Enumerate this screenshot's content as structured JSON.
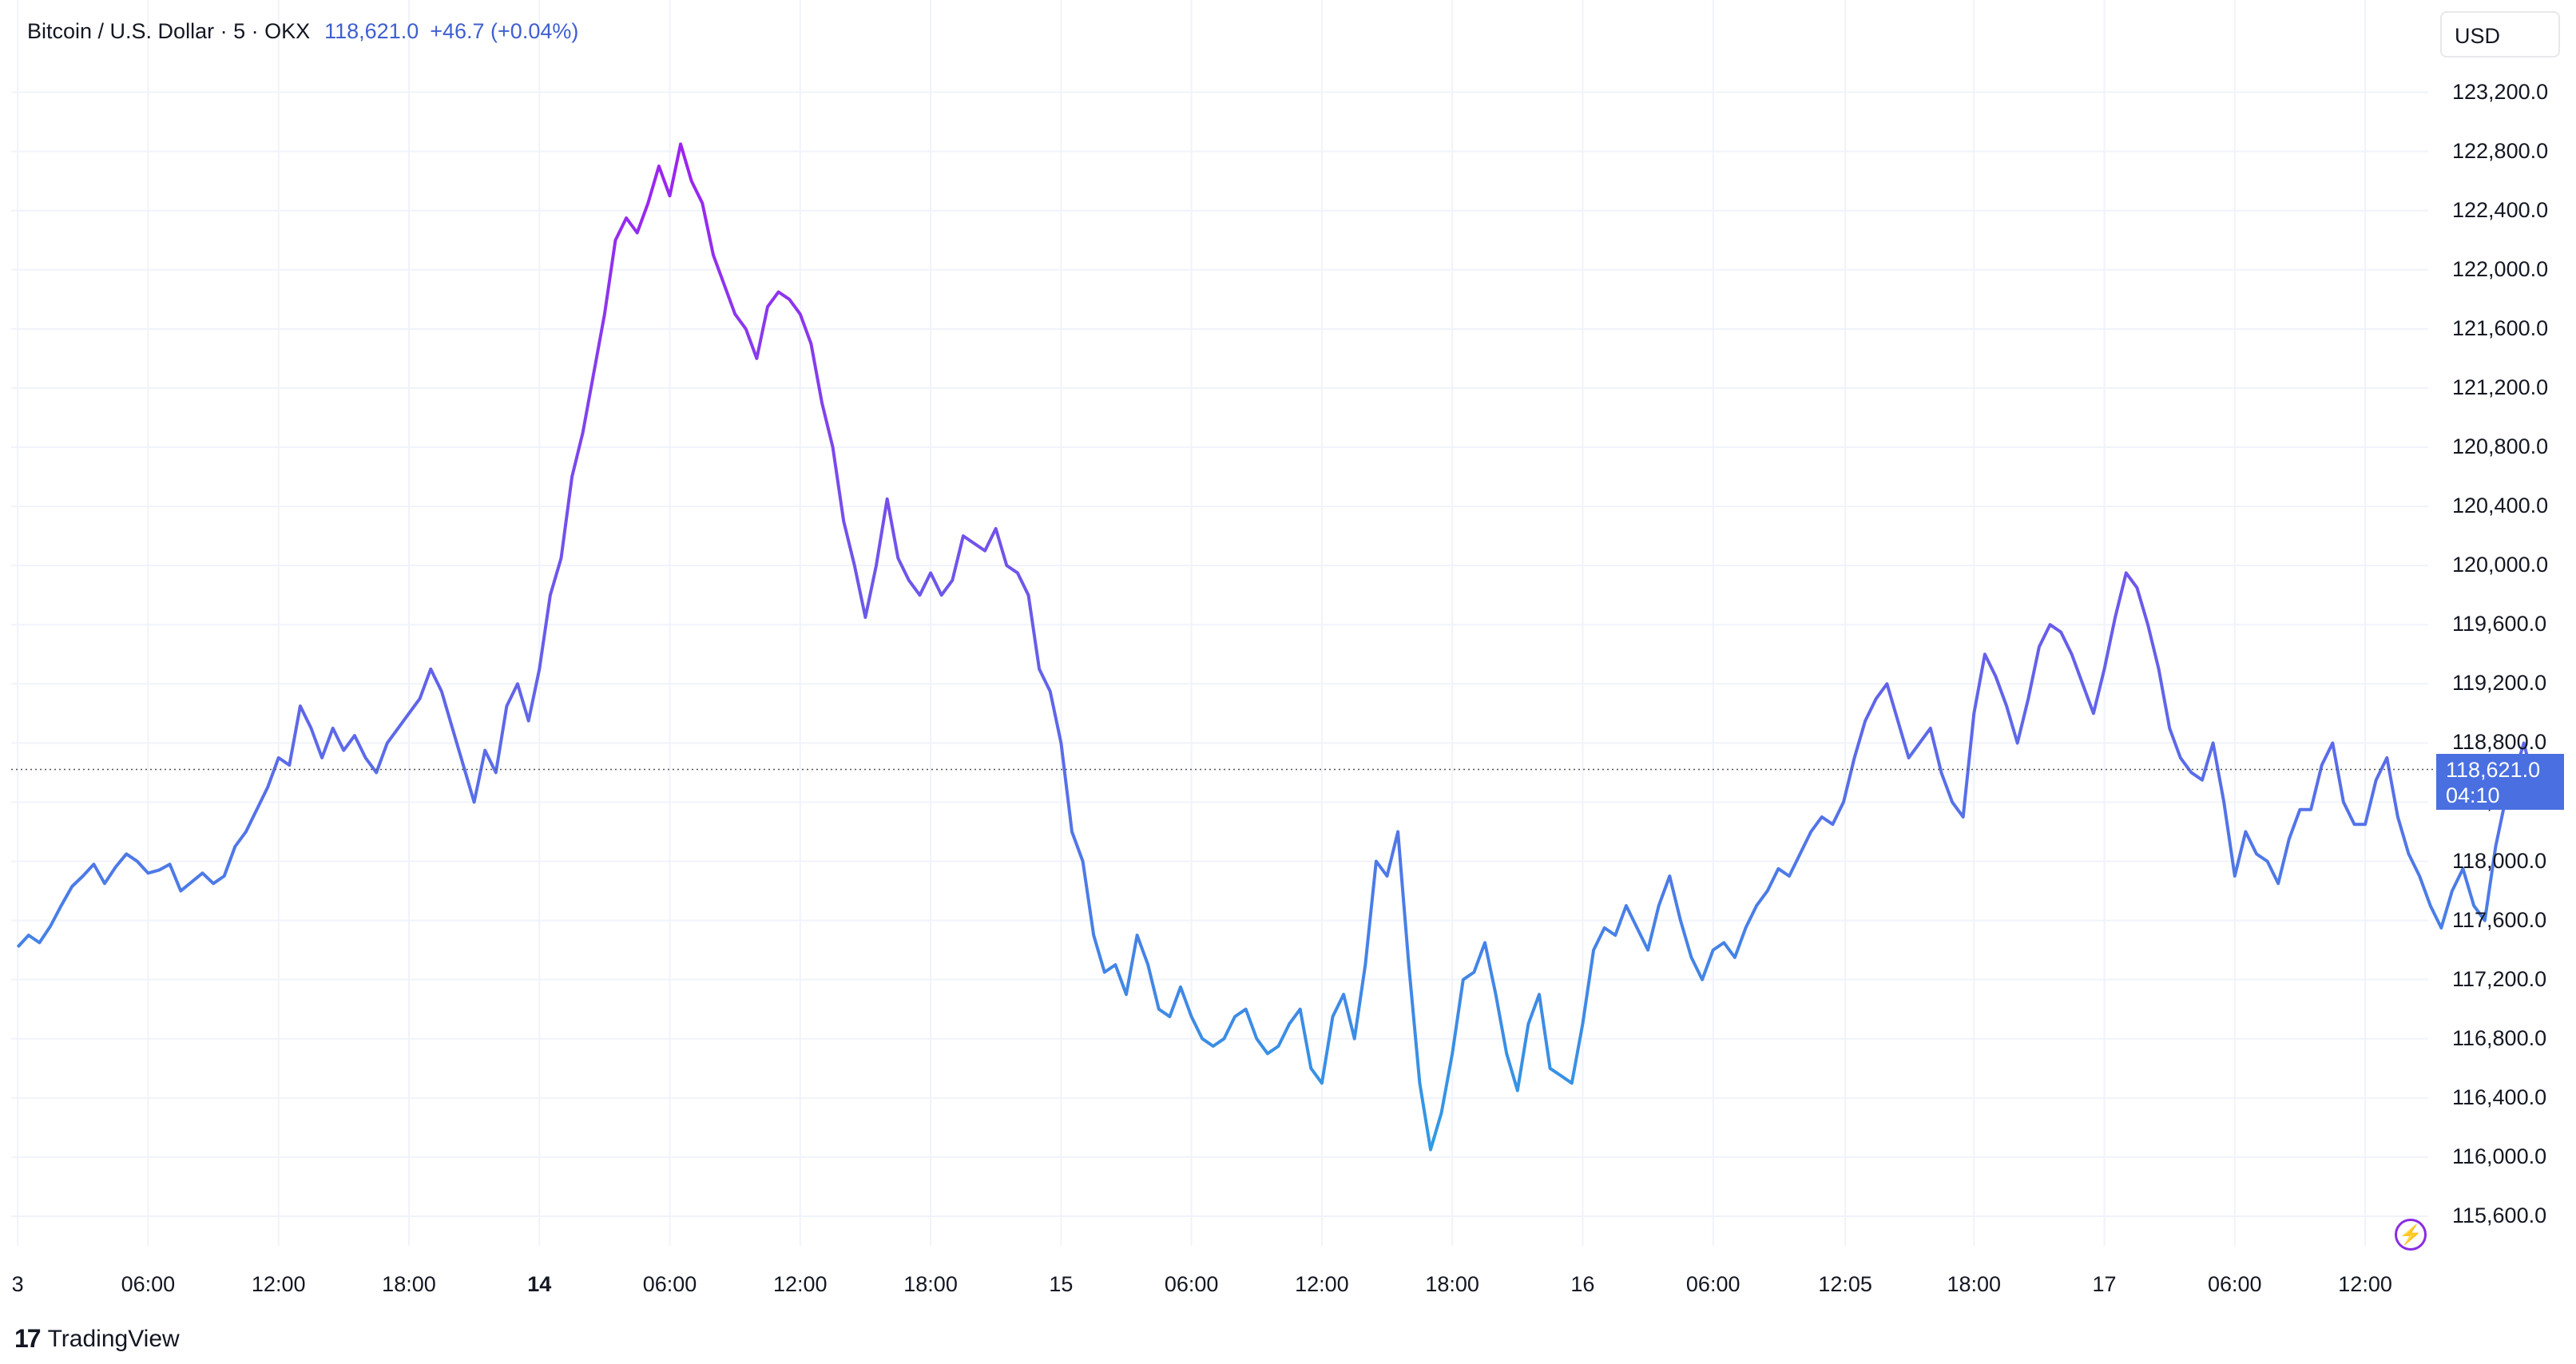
{
  "header": {
    "symbol": "Bitcoin / U.S. Dollar · 5 · OKX",
    "price": "118,621.0",
    "change": "+46.7 (+0.04%)"
  },
  "currency_label": "USD",
  "last_price_label": {
    "price": "118,621.0",
    "countdown": "04:10"
  },
  "brand": {
    "logo": "17",
    "name": "TradingView"
  },
  "colors": {
    "line_start": "#2f9be3",
    "line_end": "#a020f0",
    "accent": "#4a6fe0",
    "grid": "#f0f3fa"
  },
  "chart_data": {
    "type": "line",
    "title": "Bitcoin / U.S. Dollar · 5 · OKX",
    "ylim": [
      115400,
      123500
    ],
    "yticks": [
      115600,
      116000,
      116400,
      116800,
      117200,
      117600,
      118000,
      118400,
      118800,
      119200,
      119600,
      120000,
      120400,
      120800,
      121200,
      121600,
      122000,
      122400,
      122800,
      123200
    ],
    "ytick_labels": [
      "115,600.0",
      "116,000.0",
      "116,400.0",
      "116,800.0",
      "117,200.0",
      "117,600.0",
      "118,000.0",
      "118,400.0",
      "118,800.0",
      "119,200.0",
      "119,600.0",
      "120,000.0",
      "120,400.0",
      "120,800.0",
      "121,200.0",
      "121,600.0",
      "122,000.0",
      "122,400.0",
      "122,800.0",
      "123,200.0"
    ],
    "xticks": [
      {
        "label": "3",
        "t": 0.0
      },
      {
        "label": "06:00",
        "t": 6.0
      },
      {
        "label": "12:00",
        "t": 12.0
      },
      {
        "label": "18:00",
        "t": 18.0
      },
      {
        "label": "14",
        "t": 24.0,
        "bold": true
      },
      {
        "label": "06:00",
        "t": 30.0
      },
      {
        "label": "12:00",
        "t": 36.0
      },
      {
        "label": "18:00",
        "t": 42.0
      },
      {
        "label": "15",
        "t": 48.0
      },
      {
        "label": "06:00",
        "t": 54.0
      },
      {
        "label": "12:00",
        "t": 60.0
      },
      {
        "label": "18:00",
        "t": 66.0
      },
      {
        "label": "16",
        "t": 72.0
      },
      {
        "label": "06:00",
        "t": 78.0
      },
      {
        "label": "12:05",
        "t": 84.08
      },
      {
        "label": "18:00",
        "t": 90.0
      },
      {
        "label": "17",
        "t": 96.0
      },
      {
        "label": "06:00",
        "t": 102.0
      },
      {
        "label": "12:00",
        "t": 108.0
      }
    ],
    "xlim": [
      -0.3,
      110.9
    ],
    "last_value": 118621.0,
    "grid": true,
    "series": [
      {
        "values": [
          [
            0.0,
            117420
          ],
          [
            0.5,
            117500
          ],
          [
            1.0,
            117450
          ],
          [
            1.5,
            117560
          ],
          [
            2.0,
            117700
          ],
          [
            2.5,
            117830
          ],
          [
            3.0,
            117900
          ],
          [
            3.5,
            117980
          ],
          [
            4.0,
            117850
          ],
          [
            4.5,
            117960
          ],
          [
            5.0,
            118050
          ],
          [
            5.5,
            118000
          ],
          [
            6.0,
            117920
          ],
          [
            6.5,
            117940
          ],
          [
            7.0,
            117980
          ],
          [
            7.5,
            117800
          ],
          [
            8.0,
            117860
          ],
          [
            8.5,
            117920
          ],
          [
            9.0,
            117850
          ],
          [
            9.5,
            117900
          ],
          [
            10.0,
            118100
          ],
          [
            10.5,
            118200
          ],
          [
            11.0,
            118350
          ],
          [
            11.5,
            118500
          ],
          [
            12.0,
            118700
          ],
          [
            12.5,
            118650
          ],
          [
            13.0,
            119050
          ],
          [
            13.5,
            118900
          ],
          [
            14.0,
            118700
          ],
          [
            14.5,
            118900
          ],
          [
            15.0,
            118750
          ],
          [
            15.5,
            118850
          ],
          [
            16.0,
            118700
          ],
          [
            16.5,
            118600
          ],
          [
            17.0,
            118800
          ],
          [
            17.5,
            118900
          ],
          [
            18.0,
            119000
          ],
          [
            18.5,
            119100
          ],
          [
            19.0,
            119300
          ],
          [
            19.5,
            119150
          ],
          [
            20.0,
            118900
          ],
          [
            20.5,
            118650
          ],
          [
            21.0,
            118400
          ],
          [
            21.5,
            118750
          ],
          [
            22.0,
            118600
          ],
          [
            22.5,
            119050
          ],
          [
            23.0,
            119200
          ],
          [
            23.5,
            118950
          ],
          [
            24.0,
            119300
          ],
          [
            24.5,
            119800
          ],
          [
            25.0,
            120050
          ],
          [
            25.5,
            120600
          ],
          [
            26.0,
            120900
          ],
          [
            26.5,
            121300
          ],
          [
            27.0,
            121700
          ],
          [
            27.5,
            122200
          ],
          [
            28.0,
            122350
          ],
          [
            28.5,
            122250
          ],
          [
            29.0,
            122450
          ],
          [
            29.5,
            122700
          ],
          [
            30.0,
            122500
          ],
          [
            30.5,
            122850
          ],
          [
            31.0,
            122600
          ],
          [
            31.5,
            122450
          ],
          [
            32.0,
            122100
          ],
          [
            32.5,
            121900
          ],
          [
            33.0,
            121700
          ],
          [
            33.5,
            121600
          ],
          [
            34.0,
            121400
          ],
          [
            34.5,
            121750
          ],
          [
            35.0,
            121850
          ],
          [
            35.5,
            121800
          ],
          [
            36.0,
            121700
          ],
          [
            36.5,
            121500
          ],
          [
            37.0,
            121100
          ],
          [
            37.5,
            120800
          ],
          [
            38.0,
            120300
          ],
          [
            38.5,
            120000
          ],
          [
            39.0,
            119650
          ],
          [
            39.5,
            120000
          ],
          [
            40.0,
            120450
          ],
          [
            40.5,
            120050
          ],
          [
            41.0,
            119900
          ],
          [
            41.5,
            119800
          ],
          [
            42.0,
            119950
          ],
          [
            42.5,
            119800
          ],
          [
            43.0,
            119900
          ],
          [
            43.5,
            120200
          ],
          [
            44.0,
            120150
          ],
          [
            44.5,
            120100
          ],
          [
            45.0,
            120250
          ],
          [
            45.5,
            120000
          ],
          [
            46.0,
            119950
          ],
          [
            46.5,
            119800
          ],
          [
            47.0,
            119300
          ],
          [
            47.5,
            119150
          ],
          [
            48.0,
            118800
          ],
          [
            48.5,
            118200
          ],
          [
            49.0,
            118000
          ],
          [
            49.5,
            117500
          ],
          [
            50.0,
            117250
          ],
          [
            50.5,
            117300
          ],
          [
            51.0,
            117100
          ],
          [
            51.5,
            117500
          ],
          [
            52.0,
            117300
          ],
          [
            52.5,
            117000
          ],
          [
            53.0,
            116950
          ],
          [
            53.5,
            117150
          ],
          [
            54.0,
            116950
          ],
          [
            54.5,
            116800
          ],
          [
            55.0,
            116750
          ],
          [
            55.5,
            116800
          ],
          [
            56.0,
            116950
          ],
          [
            56.5,
            117000
          ],
          [
            57.0,
            116800
          ],
          [
            57.5,
            116700
          ],
          [
            58.0,
            116750
          ],
          [
            58.5,
            116900
          ],
          [
            59.0,
            117000
          ],
          [
            59.5,
            116600
          ],
          [
            60.0,
            116500
          ],
          [
            60.5,
            116950
          ],
          [
            61.0,
            117100
          ],
          [
            61.5,
            116800
          ],
          [
            62.0,
            117300
          ],
          [
            62.5,
            118000
          ],
          [
            63.0,
            117900
          ],
          [
            63.5,
            118200
          ],
          [
            64.0,
            117300
          ],
          [
            64.5,
            116500
          ],
          [
            65.0,
            116050
          ],
          [
            65.5,
            116300
          ],
          [
            66.0,
            116700
          ],
          [
            66.5,
            117200
          ],
          [
            67.0,
            117250
          ],
          [
            67.5,
            117450
          ],
          [
            68.0,
            117100
          ],
          [
            68.5,
            116700
          ],
          [
            69.0,
            116450
          ],
          [
            69.5,
            116900
          ],
          [
            70.0,
            117100
          ],
          [
            70.5,
            116600
          ],
          [
            71.0,
            116550
          ],
          [
            71.5,
            116500
          ],
          [
            72.0,
            116900
          ],
          [
            72.5,
            117400
          ],
          [
            73.0,
            117550
          ],
          [
            73.5,
            117500
          ],
          [
            74.0,
            117700
          ],
          [
            74.5,
            117550
          ],
          [
            75.0,
            117400
          ],
          [
            75.5,
            117700
          ],
          [
            76.0,
            117900
          ],
          [
            76.5,
            117600
          ],
          [
            77.0,
            117350
          ],
          [
            77.5,
            117200
          ],
          [
            78.0,
            117400
          ],
          [
            78.5,
            117450
          ],
          [
            79.0,
            117350
          ],
          [
            79.5,
            117550
          ],
          [
            80.0,
            117700
          ],
          [
            80.5,
            117800
          ],
          [
            81.0,
            117950
          ],
          [
            81.5,
            117900
          ],
          [
            82.0,
            118050
          ],
          [
            82.5,
            118200
          ],
          [
            83.0,
            118300
          ],
          [
            83.5,
            118250
          ],
          [
            84.0,
            118400
          ],
          [
            84.5,
            118700
          ],
          [
            85.0,
            118950
          ],
          [
            85.5,
            119100
          ],
          [
            86.0,
            119200
          ],
          [
            86.5,
            118950
          ],
          [
            87.0,
            118700
          ],
          [
            87.5,
            118800
          ],
          [
            88.0,
            118900
          ],
          [
            88.5,
            118600
          ],
          [
            89.0,
            118400
          ],
          [
            89.5,
            118300
          ],
          [
            90.0,
            119000
          ],
          [
            90.5,
            119400
          ],
          [
            91.0,
            119250
          ],
          [
            91.5,
            119050
          ],
          [
            92.0,
            118800
          ],
          [
            92.5,
            119100
          ],
          [
            93.0,
            119450
          ],
          [
            93.5,
            119600
          ],
          [
            94.0,
            119550
          ],
          [
            94.5,
            119400
          ],
          [
            95.0,
            119200
          ],
          [
            95.5,
            119000
          ],
          [
            96.0,
            119300
          ],
          [
            96.5,
            119650
          ],
          [
            97.0,
            119950
          ],
          [
            97.5,
            119850
          ],
          [
            98.0,
            119600
          ],
          [
            98.5,
            119300
          ],
          [
            99.0,
            118900
          ],
          [
            99.5,
            118700
          ],
          [
            100.0,
            118600
          ],
          [
            100.5,
            118550
          ],
          [
            101.0,
            118800
          ],
          [
            101.5,
            118400
          ],
          [
            102.0,
            117900
          ],
          [
            102.5,
            118200
          ],
          [
            103.0,
            118050
          ],
          [
            103.5,
            118000
          ],
          [
            104.0,
            117850
          ],
          [
            104.5,
            118150
          ],
          [
            105.0,
            118350
          ],
          [
            105.5,
            118350
          ],
          [
            106.0,
            118650
          ],
          [
            106.5,
            118800
          ],
          [
            107.0,
            118400
          ],
          [
            107.5,
            118250
          ],
          [
            108.0,
            118250
          ],
          [
            108.5,
            118550
          ],
          [
            109.0,
            118700
          ],
          [
            109.5,
            118300
          ],
          [
            110.0,
            118050
          ],
          [
            110.5,
            117900
          ],
          [
            111.0,
            117700
          ],
          [
            111.5,
            117550
          ],
          [
            112.0,
            117800
          ],
          [
            112.5,
            117950
          ],
          [
            113.0,
            117700
          ],
          [
            113.5,
            117600
          ],
          [
            114.0,
            118100
          ],
          [
            114.5,
            118450
          ],
          [
            115.0,
            118650
          ],
          [
            115.3,
            118800
          ],
          [
            115.6,
            118621
          ]
        ]
      }
    ]
  }
}
